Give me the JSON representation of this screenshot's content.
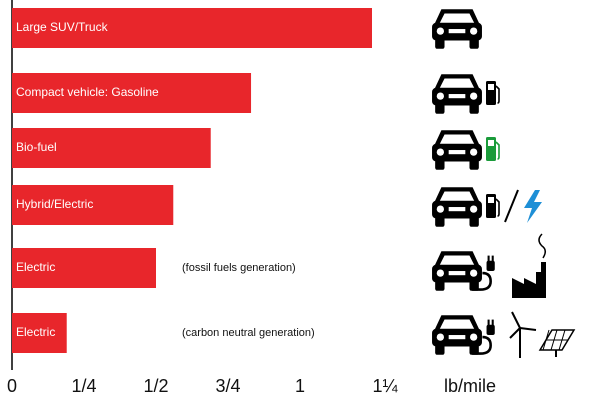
{
  "chart_data": {
    "type": "bar",
    "categories": [
      "Large SUV/Truck",
      "Compact vehicle: Gasoline",
      "Bio-fuel",
      "Hybrid/Electric",
      "Electric",
      "Electric"
    ],
    "values": [
      1.25,
      0.83,
      0.69,
      0.56,
      0.5,
      0.19
    ],
    "color": "#e8262b",
    "xlim": [
      0,
      1.25
    ],
    "xticks": [
      0,
      {
        "value": 0.25,
        "label": "1/4"
      },
      {
        "value": 0.5,
        "label": "1/2"
      },
      {
        "value": 0.75,
        "label": "3/4"
      },
      1,
      {
        "value": 1.25,
        "label": "1¼"
      }
    ],
    "xlabel": "lb/mile",
    "annotations": [
      "(fossil fuels generation)",
      "(carbon neutral generation)"
    ]
  }
}
